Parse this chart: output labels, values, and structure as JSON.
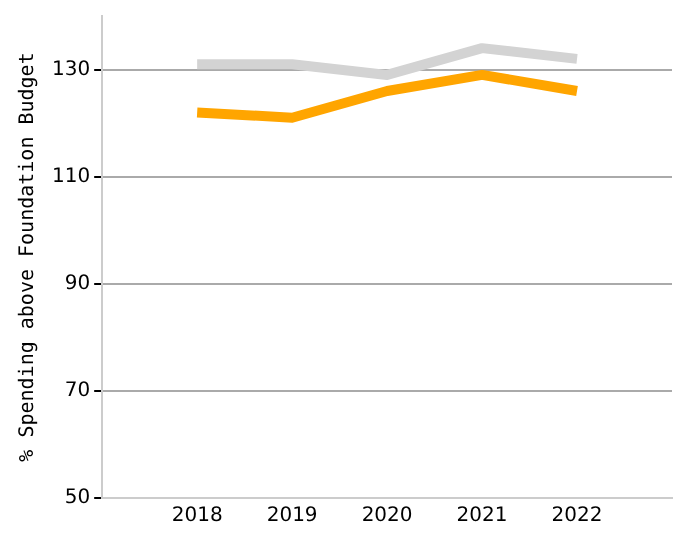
{
  "chart_data": {
    "type": "line",
    "ylabel": "% Spending above Foundation Budget",
    "x": [
      2018,
      2019,
      2020,
      2021,
      2022
    ],
    "series": [
      {
        "color": "#d3d3d3",
        "values": [
          131,
          131,
          129,
          134,
          132
        ]
      },
      {
        "color": "#ffa500",
        "values": [
          122,
          121,
          126,
          129,
          126
        ]
      }
    ],
    "xlim": [
      2017,
      2023
    ],
    "xticks": [
      2018,
      2019,
      2020,
      2021,
      2022
    ],
    "ylim": [
      50,
      140
    ],
    "yticks": [
      50,
      70,
      90,
      110,
      130
    ],
    "grid": "y",
    "legend": false,
    "marker": "none",
    "line_style": "solid"
  }
}
